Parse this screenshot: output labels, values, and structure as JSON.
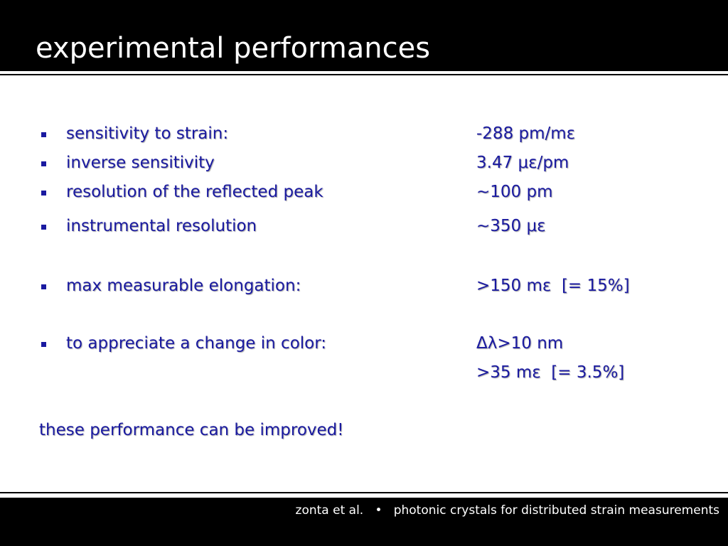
{
  "header": {
    "title": "experimental performances"
  },
  "items": [
    {
      "label": "sensitivity to strain:",
      "value": "-288 pm/mε"
    },
    {
      "label": "inverse sensitivity",
      "value": "3.47 με/pm"
    },
    {
      "label": "resolution of the reflected peak",
      "value": "~100 pm"
    },
    {
      "label": "instrumental resolution",
      "value": "~350 με"
    },
    {
      "label": "max measurable elongation:",
      "value": ">150 mε  [= 15%]"
    },
    {
      "label": "to appreciate a change in color:",
      "value": "Δλ>10 nm",
      "value2": ">35 mε  [= 3.5%]"
    }
  ],
  "conclusion": "these performance can be improved!",
  "footer": {
    "author": "zonta et al.",
    "separator": "•",
    "subtitle": "photonic crystals for distributed strain measurements"
  }
}
